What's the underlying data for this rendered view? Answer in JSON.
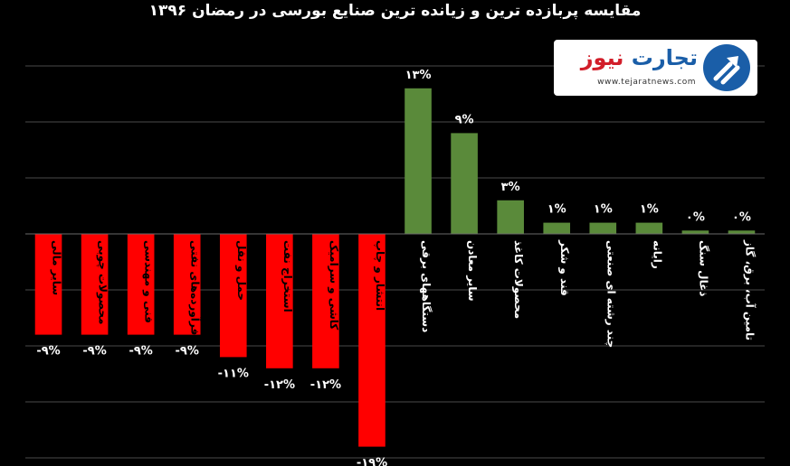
{
  "chart_data": {
    "type": "bar",
    "title": "مقایسه پربازده ترین و زیانده ترین صنایع بورسی در  رمضان ۱۳۹۶",
    "categories": [
      "سایر مالی",
      "محصولات چوبی",
      "فنی و مهندسی",
      "فرآورده‌های نفتی",
      "حمل و نقل",
      "استخراج نفت",
      "کاشی و سرامیک",
      "انتشار و چاپ",
      "دستگاههای برقی",
      "سایر معادن",
      "محصولات کاغذ",
      "قند و شکر",
      "چند رشته ای صنعتی",
      "رایانه",
      "ذغال سنگ",
      "تامین آب، برق، گاز"
    ],
    "values": [
      -9,
      -9,
      -9,
      -9,
      -11,
      -12,
      -12,
      -19,
      13,
      9,
      3,
      1,
      1,
      1,
      0.3,
      0.3
    ],
    "value_labels": [
      "-۹%",
      "-۹%",
      "-۹%",
      "-۹%",
      "-۱۱%",
      "-۱۲%",
      "-۱۲%",
      "-۱۹%",
      "۱۳%",
      "۹%",
      "۳%",
      "۱%",
      "۱%",
      "۱%",
      "۰%",
      "۰%"
    ],
    "ylim": [
      -20,
      15
    ],
    "grid": true,
    "colors": {
      "positive": "#5a8a3a",
      "negative": "#ff0000",
      "background": "#000000",
      "grid": "#4a4a4a"
    }
  },
  "logo": {
    "name_part1": "تجارت",
    "name_part2": "نیوز",
    "url": "www.tejaratnews.com",
    "mark_color": "#1a5ea8",
    "accent_color": "#d21e2a",
    "icon": "trend-arrow-icon"
  }
}
